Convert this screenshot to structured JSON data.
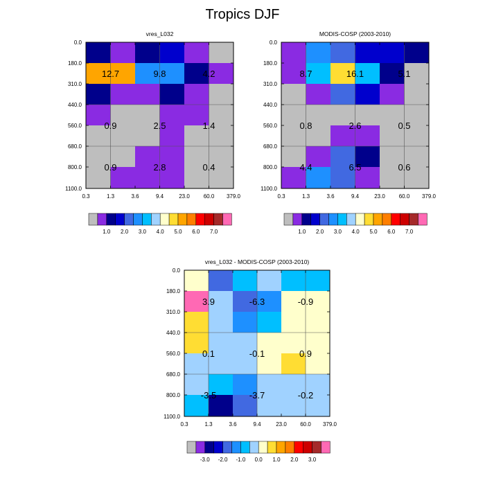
{
  "figure_title": "Tropics DJF",
  "colors": {
    "grey": "#bebebe",
    "panel_palette": [
      "#bebebe",
      "#8a2be2",
      "#00008b",
      "#0000cd",
      "#4169e1",
      "#1e90ff",
      "#00bfff",
      "#a0d2ff",
      "#ffffcc",
      "#ffdd33",
      "#ffa500",
      "#ff7f00",
      "#ff0000",
      "#cd0000",
      "#a52a2a",
      "#ff69b4"
    ],
    "diff_palette": [
      "#bebebe",
      "#8a2be2",
      "#00008b",
      "#0000cd",
      "#4169e1",
      "#1e90ff",
      "#00bfff",
      "#a0d2ff",
      "#ffffcc",
      "#ffdd33",
      "#ffa500",
      "#ff7f00",
      "#ff0000",
      "#cd0000",
      "#a52a2a",
      "#ff69b4"
    ]
  },
  "chart_data": [
    {
      "type": "heatmap",
      "title": "vres_L032",
      "xticks": [
        "0.3",
        "1.3",
        "3.6",
        "9.4",
        "23.0",
        "60.0",
        "379.0"
      ],
      "yticks": [
        "0.0",
        "180.0",
        "310.0",
        "440.0",
        "560.0",
        "680.0",
        "800.0",
        "1100.0"
      ],
      "cells": [
        [
          2,
          1,
          2,
          3,
          1,
          0
        ],
        [
          10,
          10,
          5,
          5,
          2,
          1
        ],
        [
          2,
          1,
          1,
          2,
          1,
          0
        ],
        [
          1,
          0,
          0,
          1,
          1,
          0
        ],
        [
          0,
          0,
          0,
          1,
          0,
          0
        ],
        [
          0,
          0,
          1,
          1,
          0,
          0
        ],
        [
          0,
          1,
          1,
          1,
          0,
          0
        ]
      ],
      "labels": [
        {
          "text": "12.7",
          "col": 1,
          "row": 1
        },
        {
          "text": "9.8",
          "col": 3,
          "row": 1
        },
        {
          "text": "4.2",
          "col": 5,
          "row": 1
        },
        {
          "text": "0.9",
          "col": 1,
          "row": 4
        },
        {
          "text": "2.5",
          "col": 3,
          "row": 4
        },
        {
          "text": "1.4",
          "col": 5,
          "row": 4
        },
        {
          "text": "0.9",
          "col": 1,
          "row": 6
        },
        {
          "text": "2.8",
          "col": 3,
          "row": 6
        },
        {
          "text": "0.4",
          "col": 5,
          "row": 6
        }
      ],
      "colorbar_labels": [
        "1.0",
        "2.0",
        "3.0",
        "4.0",
        "5.0",
        "6.0",
        "7.0"
      ]
    },
    {
      "type": "heatmap",
      "title": "MODIS-COSP (2003-2010)",
      "xticks": [
        "0.3",
        "1.3",
        "3.6",
        "9.4",
        "23.0",
        "60.0",
        "379.0"
      ],
      "yticks": [
        "0.0",
        "180.0",
        "310.0",
        "440.0",
        "560.0",
        "680.0",
        "800.0",
        "1100.0"
      ],
      "cells": [
        [
          1,
          5,
          4,
          3,
          3,
          2
        ],
        [
          1,
          6,
          9,
          6,
          2,
          0
        ],
        [
          0,
          1,
          4,
          3,
          1,
          0
        ],
        [
          0,
          0,
          0,
          0,
          0,
          0
        ],
        [
          0,
          0,
          1,
          1,
          0,
          0
        ],
        [
          0,
          1,
          4,
          2,
          0,
          0
        ],
        [
          1,
          5,
          4,
          1,
          0,
          0
        ]
      ],
      "labels": [
        {
          "text": "8.7",
          "col": 1,
          "row": 1
        },
        {
          "text": "16.1",
          "col": 3,
          "row": 1
        },
        {
          "text": "5.1",
          "col": 5,
          "row": 1
        },
        {
          "text": "0.8",
          "col": 1,
          "row": 4
        },
        {
          "text": "2.6",
          "col": 3,
          "row": 4
        },
        {
          "text": "0.5",
          "col": 5,
          "row": 4
        },
        {
          "text": "4.4",
          "col": 1,
          "row": 6
        },
        {
          "text": "6.5",
          "col": 3,
          "row": 6
        },
        {
          "text": "0.6",
          "col": 5,
          "row": 6
        }
      ],
      "colorbar_labels": [
        "1.0",
        "2.0",
        "3.0",
        "4.0",
        "5.0",
        "6.0",
        "7.0"
      ]
    },
    {
      "type": "heatmap",
      "title": "vres_L032 - MODIS-COSP (2003-2010)",
      "xticks": [
        "0.3",
        "1.3",
        "3.6",
        "9.4",
        "23.0",
        "60.0",
        "379.0"
      ],
      "yticks": [
        "0.0",
        "180.0",
        "310.0",
        "440.0",
        "560.0",
        "680.0",
        "800.0",
        "1100.0"
      ],
      "cells": [
        [
          8,
          4,
          6,
          7,
          6,
          6
        ],
        [
          15,
          7,
          4,
          5,
          8,
          8
        ],
        [
          9,
          7,
          5,
          6,
          8,
          8
        ],
        [
          9,
          7,
          7,
          8,
          8,
          8
        ],
        [
          7,
          7,
          7,
          8,
          9,
          8
        ],
        [
          7,
          6,
          5,
          7,
          7,
          7
        ],
        [
          6,
          2,
          4,
          7,
          7,
          7
        ]
      ],
      "labels": [
        {
          "text": "3.9",
          "col": 1,
          "row": 1
        },
        {
          "text": "-6.3",
          "col": 3,
          "row": 1
        },
        {
          "text": "-0.9",
          "col": 5,
          "row": 1
        },
        {
          "text": "0.1",
          "col": 1,
          "row": 4
        },
        {
          "text": "-0.1",
          "col": 3,
          "row": 4
        },
        {
          "text": "0.9",
          "col": 5,
          "row": 4
        },
        {
          "text": "-3.5",
          "col": 1,
          "row": 6
        },
        {
          "text": "-3.7",
          "col": 3,
          "row": 6
        },
        {
          "text": "-0.2",
          "col": 5,
          "row": 6
        }
      ],
      "colorbar_labels": [
        "-3.0",
        "-2.0",
        "-1.0",
        "0.0",
        "1.0",
        "2.0",
        "3.0"
      ]
    }
  ]
}
